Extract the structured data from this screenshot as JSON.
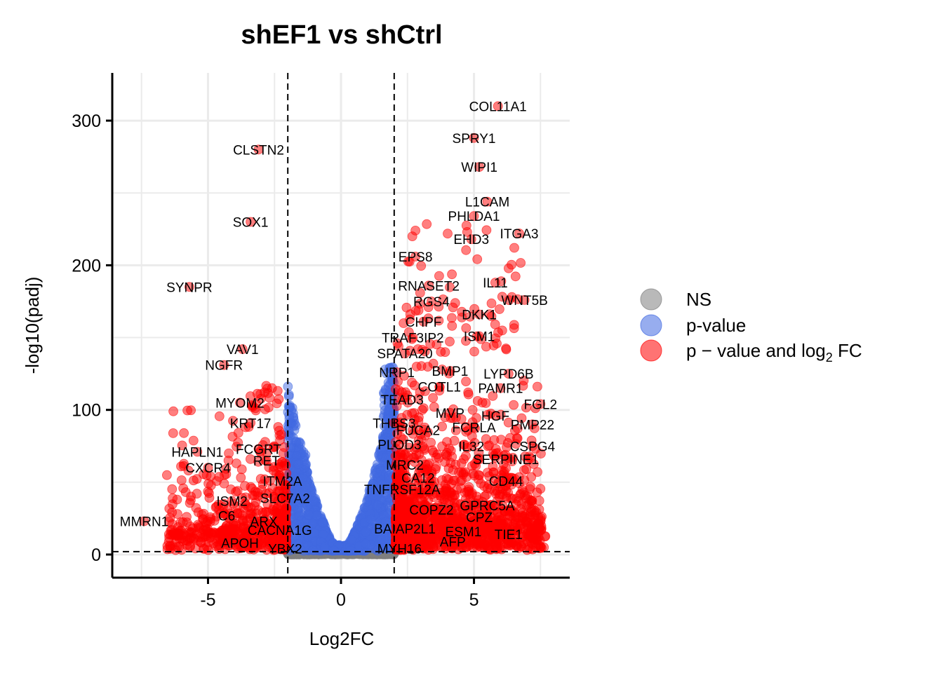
{
  "chart_data": {
    "type": "scatter",
    "title": "shEF1 vs shCtrl",
    "xlabel": "Log2FC",
    "ylabel": "-log10(padj)",
    "xlim": [
      -8.6,
      8.6
    ],
    "ylim": [
      -16,
      333
    ],
    "x_ticks": [
      -5,
      0,
      5
    ],
    "x_tick_labels": [
      "-5",
      "0",
      "5"
    ],
    "y_ticks": [
      0,
      100,
      200,
      300
    ],
    "y_tick_labels": [
      "0",
      "100",
      "200",
      "300"
    ],
    "grid": true,
    "fc_cutoffs": [
      -2,
      2
    ],
    "p_cutoff_line": 2,
    "legend_position": "right",
    "colors": {
      "NS": "#7f7f7f",
      "pvalue": "#4169e1",
      "both": "#ff0000"
    },
    "legend": [
      {
        "key": "NS",
        "label": "NS",
        "color": "#7f7f7f"
      },
      {
        "key": "pvalue",
        "label": "p-value",
        "color": "#4169e1"
      },
      {
        "key": "both",
        "label": "p − value and log",
        "sub": "2",
        "tail": " FC",
        "color": "#ff0000"
      }
    ],
    "labeled_points": [
      {
        "gene": "COL11A1",
        "x": 5.9,
        "y": 310
      },
      {
        "gene": "SPRY1",
        "x": 5.0,
        "y": 288
      },
      {
        "gene": "WIPI1",
        "x": 5.2,
        "y": 268
      },
      {
        "gene": "L1CAM",
        "x": 5.5,
        "y": 244
      },
      {
        "gene": "PHLDA1",
        "x": 5.0,
        "y": 234
      },
      {
        "gene": "ITGA3",
        "x": 6.7,
        "y": 222
      },
      {
        "gene": "EHD3",
        "x": 4.9,
        "y": 218
      },
      {
        "gene": "EPS8",
        "x": 2.8,
        "y": 206
      },
      {
        "gene": "RNASET2",
        "x": 3.3,
        "y": 186
      },
      {
        "gene": "IL11",
        "x": 5.8,
        "y": 188
      },
      {
        "gene": "RGS4",
        "x": 3.4,
        "y": 175
      },
      {
        "gene": "WNT5B",
        "x": 6.9,
        "y": 176
      },
      {
        "gene": "DKK1",
        "x": 5.2,
        "y": 166
      },
      {
        "gene": "CHPF",
        "x": 3.1,
        "y": 161
      },
      {
        "gene": "TRAF3IP2",
        "x": 2.7,
        "y": 150
      },
      {
        "gene": "ISM1",
        "x": 5.2,
        "y": 151
      },
      {
        "gene": "SPATA20",
        "x": 2.4,
        "y": 139
      },
      {
        "gene": "NRP1",
        "x": 2.1,
        "y": 126
      },
      {
        "gene": "BMP1",
        "x": 4.1,
        "y": 127
      },
      {
        "gene": "LYPD6B",
        "x": 6.3,
        "y": 125
      },
      {
        "gene": "COTL1",
        "x": 3.7,
        "y": 116
      },
      {
        "gene": "PAMR1",
        "x": 6.0,
        "y": 115
      },
      {
        "gene": "TEAD3",
        "x": 2.3,
        "y": 107
      },
      {
        "gene": "FGL2",
        "x": 7.5,
        "y": 104
      },
      {
        "gene": "MVP",
        "x": 4.1,
        "y": 98
      },
      {
        "gene": "HGF",
        "x": 5.8,
        "y": 96
      },
      {
        "gene": "THBS3",
        "x": 2.0,
        "y": 91
      },
      {
        "gene": "PMP22",
        "x": 7.2,
        "y": 90
      },
      {
        "gene": "FCRLA",
        "x": 5.0,
        "y": 88
      },
      {
        "gene": "FUCA2",
        "x": 2.9,
        "y": 86
      },
      {
        "gene": "PLOD3",
        "x": 2.2,
        "y": 76
      },
      {
        "gene": "IL32",
        "x": 4.9,
        "y": 75
      },
      {
        "gene": "CSPG4",
        "x": 7.2,
        "y": 75
      },
      {
        "gene": "SERPINE1",
        "x": 6.2,
        "y": 66
      },
      {
        "gene": "MRC2",
        "x": 2.4,
        "y": 62
      },
      {
        "gene": "CA12",
        "x": 2.9,
        "y": 53
      },
      {
        "gene": "CD44",
        "x": 6.2,
        "y": 51
      },
      {
        "gene": "TNFRSF12A",
        "x": 2.3,
        "y": 45
      },
      {
        "gene": "GPRC5A",
        "x": 5.5,
        "y": 34
      },
      {
        "gene": "COPZ2",
        "x": 3.4,
        "y": 31
      },
      {
        "gene": "CPZ",
        "x": 5.2,
        "y": 26
      },
      {
        "gene": "BAIAP2L1",
        "x": 2.4,
        "y": 18
      },
      {
        "gene": "ESM1",
        "x": 4.6,
        "y": 16
      },
      {
        "gene": "TIE1",
        "x": 6.3,
        "y": 14
      },
      {
        "gene": "AFP",
        "x": 4.2,
        "y": 9
      },
      {
        "gene": "MYH16",
        "x": 2.2,
        "y": 4
      },
      {
        "gene": "CLSTN2",
        "x": -3.1,
        "y": 280
      },
      {
        "gene": "SOX1",
        "x": -3.4,
        "y": 230
      },
      {
        "gene": "SYNPR",
        "x": -5.7,
        "y": 185
      },
      {
        "gene": "VAV1",
        "x": -3.7,
        "y": 142
      },
      {
        "gene": "NGFR",
        "x": -4.4,
        "y": 131
      },
      {
        "gene": "MYOM2",
        "x": -3.8,
        "y": 105
      },
      {
        "gene": "KRT17",
        "x": -3.4,
        "y": 91
      },
      {
        "gene": "HAPLN1",
        "x": -5.4,
        "y": 71
      },
      {
        "gene": "FCGRT",
        "x": -3.1,
        "y": 73
      },
      {
        "gene": "RET",
        "x": -2.8,
        "y": 65
      },
      {
        "gene": "CXCR4",
        "x": -5.0,
        "y": 60
      },
      {
        "gene": "ITM2A",
        "x": -2.2,
        "y": 51
      },
      {
        "gene": "ISM2",
        "x": -4.1,
        "y": 37
      },
      {
        "gene": "SLC7A2",
        "x": -2.1,
        "y": 39
      },
      {
        "gene": "C6",
        "x": -4.3,
        "y": 27
      },
      {
        "gene": "ARX",
        "x": -2.9,
        "y": 23
      },
      {
        "gene": "MMRN1",
        "x": -7.4,
        "y": 23
      },
      {
        "gene": "CACNA1G",
        "x": -2.3,
        "y": 17
      },
      {
        "gene": "APOH",
        "x": -3.8,
        "y": 8
      },
      {
        "gene": "YBX2",
        "x": -2.1,
        "y": 4
      }
    ]
  }
}
